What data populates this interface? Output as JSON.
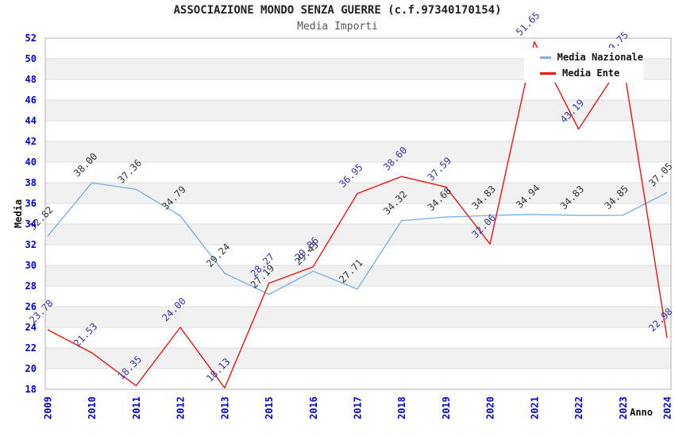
{
  "chart_data": {
    "type": "line",
    "title": "ASSOCIAZIONE MONDO SENZA GUERRE (c.f.97340170154)",
    "subtitle": "Media Importi",
    "xlabel": "Anno",
    "ylabel": "Media",
    "ylim": [
      18,
      52
    ],
    "ytick_step": 2,
    "grid": true,
    "legend_position": "top-right",
    "categories": [
      "2009",
      "2010",
      "2011",
      "2012",
      "2013",
      "2015",
      "2016",
      "2017",
      "2018",
      "2019",
      "2020",
      "2021",
      "2022",
      "2023",
      "2024"
    ],
    "series": [
      {
        "name": "Media Nazionale",
        "color": "#7DB2E6",
        "label_color": "#333333",
        "values": [
          32.82,
          38.0,
          37.36,
          34.79,
          29.24,
          27.19,
          29.43,
          27.71,
          34.32,
          34.68,
          34.83,
          34.94,
          34.83,
          34.85,
          37.05
        ],
        "labels": [
          "32.82",
          "38.00",
          "37.36",
          "34.79",
          "29.24",
          "27.19",
          "29.43",
          "27.71",
          "34.32",
          "34.68",
          "34.83",
          "34.94",
          "34.83",
          "34.85",
          "37.05"
        ]
      },
      {
        "name": "Media Ente",
        "color": "#EF1414",
        "label_color": "#3333AA",
        "values": [
          23.78,
          21.53,
          18.35,
          24.0,
          18.13,
          28.27,
          29.86,
          36.95,
          38.6,
          37.59,
          32.06,
          51.65,
          43.19,
          49.75,
          22.98
        ],
        "labels": [
          "23.78",
          "21.53",
          "18.35",
          "24.00",
          "18.13",
          "28.27",
          "29.86",
          "36.95",
          "38.60",
          "37.59",
          "32.06",
          "51.65",
          "43.19",
          "49.75",
          "22.98"
        ]
      }
    ],
    "colors": {
      "tick_label": "#0000CC",
      "grid_line": "#DCDCDC",
      "band_fill": "#F1F1F1",
      "plot_border": "#B0B0B0",
      "axis_title": "#111111"
    }
  }
}
